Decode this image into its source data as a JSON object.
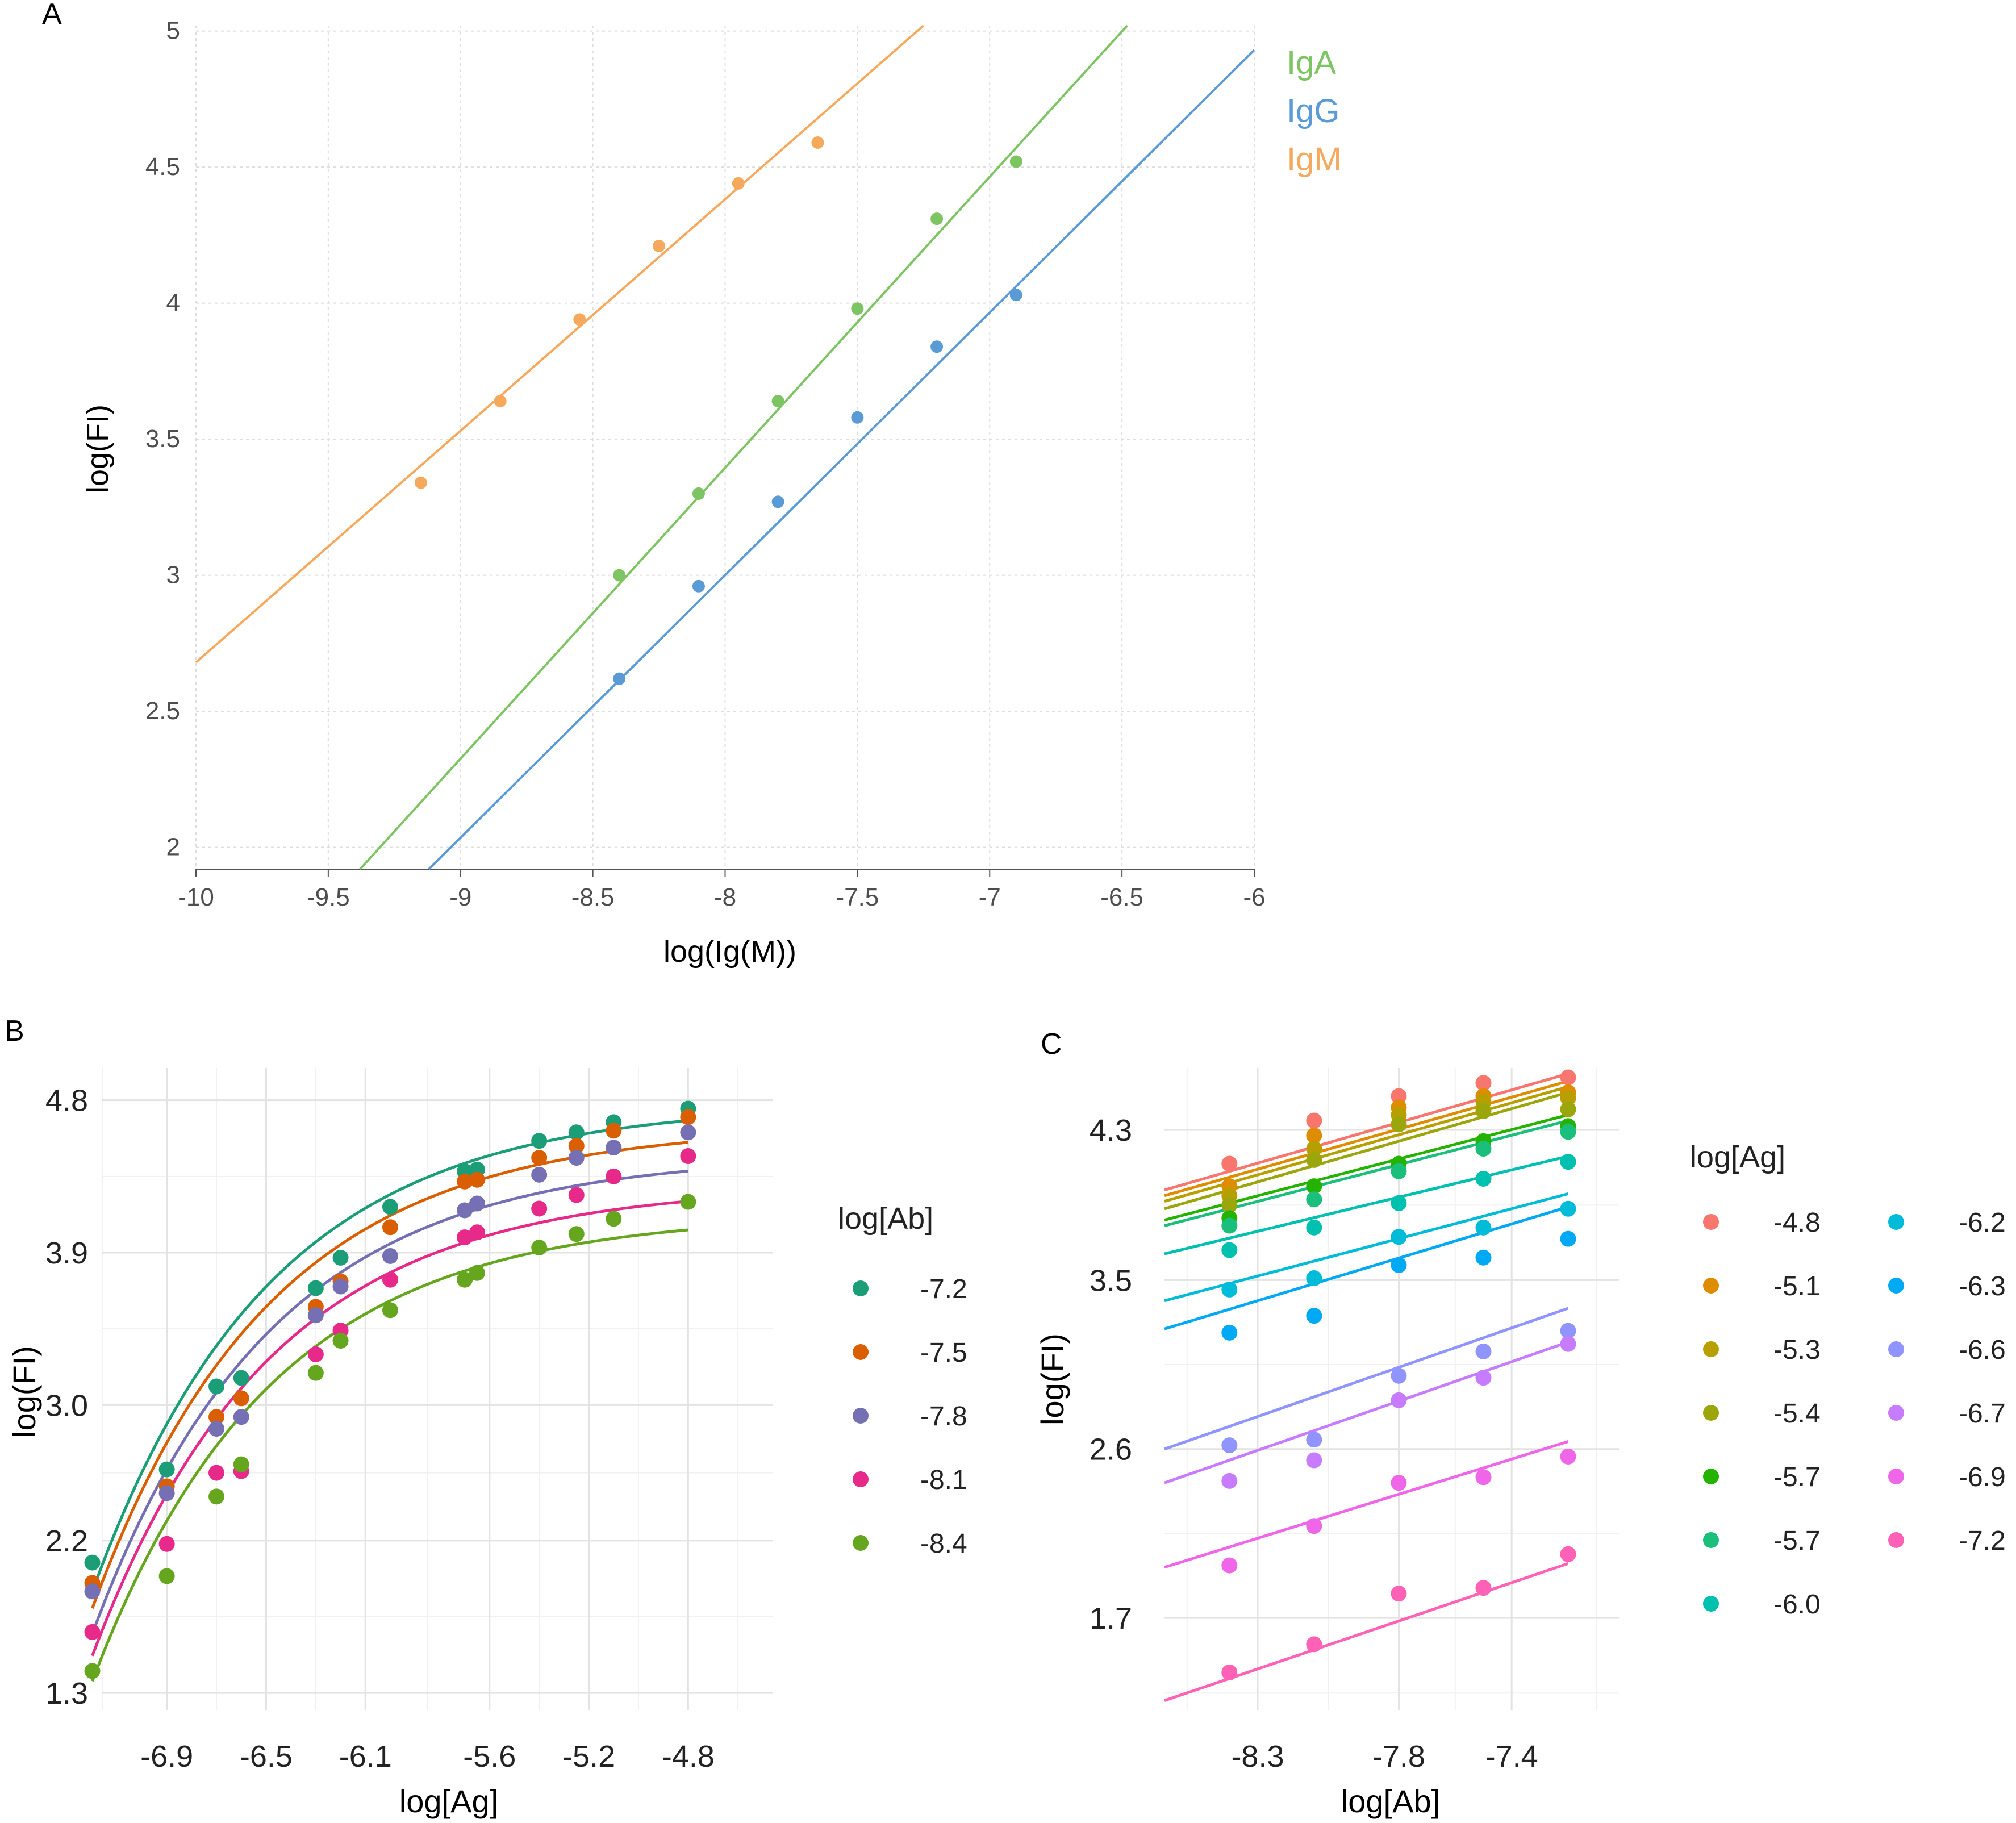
{
  "panels": {
    "a": {
      "label": "A",
      "chart_data": {
        "type": "scatter",
        "xlabel": "log(Ig(M))",
        "ylabel": "log(FI)",
        "xlim": [
          -10,
          -6
        ],
        "ylim": [
          1.92,
          5.02
        ],
        "xticks": [
          -10,
          -9.5,
          -9,
          -8.5,
          -8,
          -7.5,
          -7,
          -6.5,
          -6
        ],
        "xtick_labels": [
          "-10",
          "-9.5",
          "-9",
          "-8.5",
          "-8",
          "-7.5",
          "-7",
          "-6.5",
          "-6"
        ],
        "yticks": [
          2,
          2.5,
          3,
          3.5,
          4,
          4.5,
          5
        ],
        "ytick_labels": [
          "2",
          "2.5",
          "3",
          "3.5",
          "4",
          "4.5",
          "5"
        ],
        "series": [
          {
            "name": "IgA",
            "color": "#7dc462",
            "x": [
              -8.4,
              -8.1,
              -7.8,
              -7.5,
              -7.2,
              -6.9
            ],
            "y": [
              3.0,
              3.3,
              3.64,
              3.98,
              4.31,
              4.52
            ],
            "fit": {
              "x": [
                -9.38,
                -6.48
              ],
              "y": [
                1.92,
                5.02
              ]
            }
          },
          {
            "name": "IgG",
            "color": "#5b9bd5",
            "x": [
              -8.4,
              -8.1,
              -7.8,
              -7.5,
              -7.2,
              -6.9
            ],
            "y": [
              2.62,
              2.96,
              3.27,
              3.58,
              3.84,
              4.03
            ],
            "fit": {
              "x": [
                -9.12,
                -6.0
              ],
              "y": [
                1.92,
                4.93
              ]
            }
          },
          {
            "name": "IgM",
            "color": "#f5a95c",
            "x": [
              -9.15,
              -8.85,
              -8.55,
              -8.25,
              -7.95,
              -7.65
            ],
            "y": [
              3.34,
              3.64,
              3.94,
              4.21,
              4.44,
              4.59
            ],
            "fit": {
              "x": [
                -10.0,
                -7.25
              ],
              "y": [
                2.68,
                5.02
              ]
            }
          }
        ]
      }
    },
    "b": {
      "label": "B",
      "legend_title": "log[Ab]",
      "chart_data": {
        "type": "scatter",
        "xlabel": "log[Ag]",
        "ylabel": "log(FI)",
        "xlim": [
          -7.16,
          -4.46
        ],
        "ylim": [
          1.2,
          4.99
        ],
        "xticks": [
          -6.9,
          -6.5,
          -6.1,
          -5.6,
          -5.2,
          -4.8
        ],
        "xtick_labels": [
          "-6.9",
          "-6.5",
          "-6.1",
          "-5.6",
          "-5.2",
          "-4.8"
        ],
        "yticks": [
          1.3,
          2.2,
          3.0,
          3.9,
          4.8
        ],
        "ytick_labels": [
          "1.3",
          "2.2",
          "3.0",
          "3.9",
          "4.8"
        ],
        "x": [
          -7.2,
          -6.9,
          -6.7,
          -6.6,
          -6.3,
          -6.2,
          -6.0,
          -5.7,
          -5.65,
          -5.4,
          -5.25,
          -5.1,
          -4.8
        ],
        "curve_model": "ymax - a*exp(-k*(x+7.2))",
        "series": [
          {
            "name": "-7.2",
            "color": "#1b9e77",
            "y": [
              2.07,
              2.62,
              3.11,
              3.16,
              3.69,
              3.87,
              4.17,
              4.38,
              4.39,
              4.56,
              4.61,
              4.67,
              4.75
            ],
            "curve": {
              "ymax": 4.78,
              "a": 2.88,
              "k": 1.4
            }
          },
          {
            "name": "-7.5",
            "color": "#d95f02",
            "y": [
              1.95,
              2.52,
              2.93,
              3.04,
              3.58,
              3.73,
              4.05,
              4.32,
              4.33,
              4.46,
              4.53,
              4.62,
              4.7
            ],
            "curve": {
              "ymax": 4.65,
              "a": 2.85,
              "k": 1.4
            }
          },
          {
            "name": "-7.8",
            "color": "#7570b3",
            "y": [
              1.9,
              2.48,
              2.86,
              2.93,
              3.53,
              3.7,
              3.88,
              4.15,
              4.19,
              4.36,
              4.46,
              4.52,
              4.61
            ],
            "curve": {
              "ymax": 4.48,
              "a": 2.83,
              "k": 1.4
            }
          },
          {
            "name": "-8.1",
            "color": "#e7298a",
            "y": [
              1.66,
              2.18,
              2.6,
              2.61,
              3.3,
              3.44,
              3.74,
              3.99,
              4.02,
              4.16,
              4.24,
              4.35,
              4.47
            ],
            "curve": {
              "ymax": 4.3,
              "a": 2.78,
              "k": 1.4
            }
          },
          {
            "name": "-8.4",
            "color": "#66a61e",
            "y": [
              1.43,
              1.99,
              2.46,
              2.65,
              3.19,
              3.38,
              3.56,
              3.74,
              3.78,
              3.93,
              4.01,
              4.1,
              4.2
            ],
            "curve": {
              "ymax": 4.13,
              "a": 2.76,
              "k": 1.4
            }
          }
        ]
      }
    },
    "c": {
      "label": "C",
      "legend_title": "log[Ag]",
      "chart_data": {
        "type": "scatter",
        "xlabel": "log[Ab]",
        "ylabel": "log(FI)",
        "xlim": [
          -8.63,
          -7.02
        ],
        "ylim": [
          1.21,
          4.63
        ],
        "xticks": [
          -8.3,
          -7.8,
          -7.4
        ],
        "xtick_labels": [
          "-8.3",
          "-7.8",
          "-7.4"
        ],
        "yticks": [
          1.7,
          2.6,
          3.5,
          4.3
        ],
        "ytick_labels": [
          "1.7",
          "2.6",
          "3.5",
          "4.3"
        ],
        "x": [
          -8.4,
          -8.1,
          -7.8,
          -7.5,
          -7.2
        ],
        "series": [
          {
            "name": "-4.8",
            "color": "#f8766d",
            "y": [
              4.12,
              4.35,
              4.48,
              4.55,
              4.58
            ],
            "fit": [
              3.98,
              4.6
            ]
          },
          {
            "name": "-5.1",
            "color": "#de8c00",
            "y": [
              4.0,
              4.27,
              4.42,
              4.48,
              4.5
            ],
            "fit": [
              3.95,
              4.56
            ]
          },
          {
            "name": "-5.3",
            "color": "#b79f00",
            "y": [
              3.95,
              4.2,
              4.38,
              4.45,
              4.47
            ],
            "fit": [
              3.92,
              4.53
            ]
          },
          {
            "name": "-5.4",
            "color": "#9aa60c",
            "y": [
              3.9,
              4.14,
              4.33,
              4.4,
              4.41
            ],
            "fit": [
              3.88,
              4.5
            ]
          },
          {
            "name": "-5.7",
            "color": "#24b300",
            "y": [
              3.83,
              4.0,
              4.12,
              4.24,
              4.32
            ],
            "fit": [
              3.82,
              4.38
            ]
          },
          {
            "name": "-5.7",
            "color": "#19bf7b",
            "y": [
              3.79,
              3.93,
              4.08,
              4.2,
              4.29
            ],
            "fit": [
              3.79,
              4.35
            ]
          },
          {
            "name": "-6.0",
            "color": "#00c0af",
            "y": [
              3.66,
              3.78,
              3.91,
              4.04,
              4.13
            ],
            "fit": [
              3.64,
              4.16
            ]
          },
          {
            "name": "-6.2",
            "color": "#00bcd8",
            "y": [
              3.45,
              3.51,
              3.73,
              3.78,
              3.88
            ],
            "fit": [
              3.39,
              3.96
            ]
          },
          {
            "name": "-6.3",
            "color": "#00a9f4",
            "y": [
              3.22,
              3.31,
              3.58,
              3.62,
              3.72
            ],
            "fit": [
              3.24,
              3.89
            ]
          },
          {
            "name": "-6.6",
            "color": "#8f94ff",
            "y": [
              2.62,
              2.65,
              2.99,
              3.12,
              3.23
            ],
            "fit": [
              2.6,
              3.35
            ]
          },
          {
            "name": "-6.7",
            "color": "#c77cff",
            "y": [
              2.43,
              2.54,
              2.86,
              2.98,
              3.16
            ],
            "fit": [
              2.42,
              3.17
            ]
          },
          {
            "name": "-6.9",
            "color": "#f066e8",
            "y": [
              1.98,
              2.19,
              2.42,
              2.45,
              2.56
            ],
            "fit": [
              1.97,
              2.64
            ]
          },
          {
            "name": "-7.2",
            "color": "#fe61b5",
            "y": [
              1.41,
              1.56,
              1.83,
              1.86,
              2.04
            ],
            "fit": [
              1.26,
              1.99
            ]
          }
        ]
      }
    }
  }
}
